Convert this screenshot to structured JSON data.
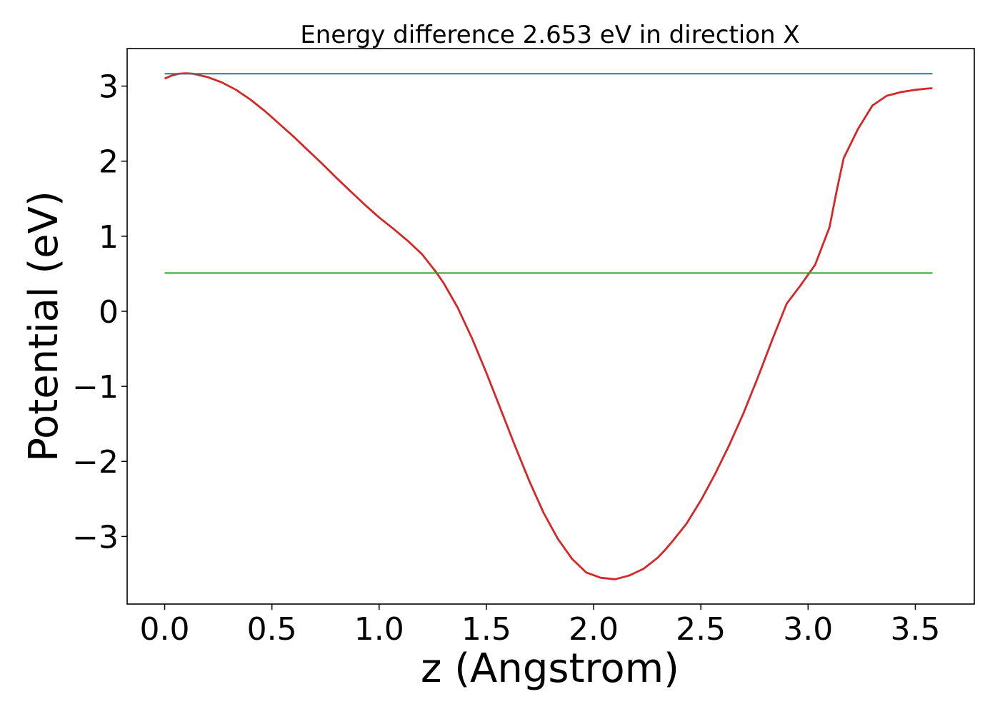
{
  "chart_data": {
    "type": "line",
    "title": "Energy difference 2.653 eV in direction X",
    "xlabel": "z (Angstrom)",
    "ylabel": "Potential (eV)",
    "xlim": [
      -0.175,
      3.775
    ],
    "ylim": [
      -3.9,
      3.5
    ],
    "x_ticks": [
      0.0,
      0.5,
      1.0,
      1.5,
      2.0,
      2.5,
      3.0,
      3.5
    ],
    "x_tick_labels": [
      "0.0",
      "0.5",
      "1.0",
      "1.5",
      "2.0",
      "2.5",
      "3.0",
      "3.5"
    ],
    "y_ticks": [
      3,
      2,
      1,
      0,
      -1,
      -2,
      -3
    ],
    "y_tick_labels": [
      "3",
      "2",
      "1",
      "0",
      "−1",
      "−2",
      "−3"
    ],
    "grid": false,
    "series": [
      {
        "color": "#d62728",
        "x": [
          0.0,
          0.033,
          0.066,
          0.1,
          0.133,
          0.2,
          0.266,
          0.333,
          0.4,
          0.466,
          0.533,
          0.6,
          0.666,
          0.733,
          0.8,
          0.866,
          0.933,
          1.0,
          1.066,
          1.133,
          1.2,
          1.233,
          1.266,
          1.3,
          1.366,
          1.433,
          1.5,
          1.566,
          1.633,
          1.7,
          1.766,
          1.833,
          1.9,
          1.966,
          2.033,
          2.1,
          2.166,
          2.233,
          2.3,
          2.333,
          2.366,
          2.433,
          2.5,
          2.566,
          2.633,
          2.7,
          2.766,
          2.833,
          2.9,
          2.966,
          3.033,
          3.1,
          3.133,
          3.166,
          3.233,
          3.3,
          3.366,
          3.433,
          3.5,
          3.566,
          3.58
        ],
        "values": [
          3.1,
          3.14,
          3.165,
          3.17,
          3.165,
          3.12,
          3.05,
          2.95,
          2.82,
          2.67,
          2.5,
          2.33,
          2.15,
          1.97,
          1.78,
          1.6,
          1.42,
          1.25,
          1.1,
          0.94,
          0.76,
          0.64,
          0.52,
          0.38,
          0.05,
          -0.36,
          -0.82,
          -1.3,
          -1.79,
          -2.26,
          -2.68,
          -3.03,
          -3.3,
          -3.48,
          -3.55,
          -3.57,
          -3.52,
          -3.43,
          -3.28,
          -3.18,
          -3.07,
          -2.83,
          -2.52,
          -2.17,
          -1.78,
          -1.35,
          -0.88,
          -0.38,
          0.1,
          0.35,
          0.62,
          1.12,
          1.6,
          2.04,
          2.43,
          2.74,
          2.87,
          2.92,
          2.95,
          2.97,
          2.97
        ]
      },
      {
        "color": "#1f77b4",
        "x": [
          0.0,
          3.58
        ],
        "values": [
          3.165,
          3.165
        ]
      },
      {
        "color": "#2ca02c",
        "x": [
          0.0,
          3.58
        ],
        "values": [
          0.51,
          0.51
        ]
      }
    ]
  }
}
